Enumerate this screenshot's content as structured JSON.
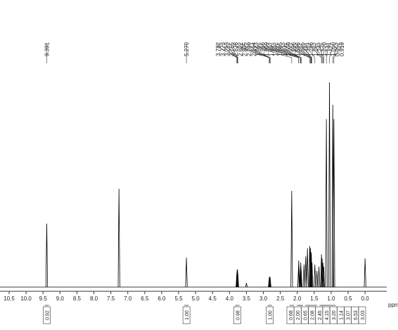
{
  "chart_data": {
    "type": "nmr",
    "xlabel": "ppm",
    "xlim": [
      10.77,
      -0.64
    ],
    "xticks": [
      10.5,
      {
        "value": 10,
        "label": "10.0"
      },
      9.5,
      {
        "value": 9,
        "label": "9.0"
      },
      8.5,
      {
        "value": 8,
        "label": "8.0"
      },
      7.5,
      {
        "value": 7,
        "label": "7.0"
      },
      6.5,
      {
        "value": 6,
        "label": "6.0"
      },
      5.5,
      {
        "value": 5,
        "label": "5.0"
      },
      4.5,
      {
        "value": 4,
        "label": "4.0"
      },
      3.5,
      {
        "value": 3,
        "label": "3.0"
      },
      2.5,
      {
        "value": 2,
        "label": "2.0"
      },
      1.5,
      {
        "value": 1,
        "label": "1.0"
      },
      0.5,
      {
        "value": 0,
        "label": "0.0"
      }
    ],
    "signals": {
      "x": [
        9.391,
        7.26,
        5.27,
        3.782,
        3.773,
        3.763,
        3.755,
        3.5,
        2.828,
        2.822,
        2.805,
        2.799,
        2.164,
        1.962,
        1.956,
        1.909,
        1.897,
        1.892,
        1.885,
        1.8,
        1.75,
        1.7,
        1.632,
        1.609,
        1.596,
        1.586,
        1.565,
        1.481,
        1.42,
        1.36,
        1.286,
        1.267,
        1.242,
        1.22,
        1.141,
        1.05,
        0.952,
        0.919,
        0
      ],
      "values": [
        31,
        48,
        14.4,
        7,
        8.6,
        8.6,
        7,
        2,
        4,
        5,
        5,
        4,
        47,
        10,
        13,
        9,
        12,
        10,
        8,
        11,
        15,
        19,
        20,
        19,
        16,
        17,
        12,
        11,
        8,
        10,
        16,
        14,
        12,
        10,
        82,
        100,
        89,
        82,
        14
      ]
    },
    "peak_labels": [
      9.391,
      {
        "value": 5.27,
        "label": "5.270"
      },
      3.782,
      3.773,
      3.763,
      3.755,
      2.828,
      2.822,
      2.805,
      2.799,
      2.164,
      1.962,
      1.956,
      1.909,
      1.897,
      1.892,
      1.885,
      1.632,
      1.609,
      1.596,
      1.586,
      1.565,
      1.481,
      1.286,
      1.267,
      1.242,
      {
        "value": 1.22,
        "label": "1.220"
      },
      1.141,
      {
        "value": 1.05,
        "label": "1.050"
      },
      0.952,
      0.919
    ],
    "integrals": {
      "x": [
        9.391,
        5.27,
        3.77,
        2.81,
        2.16,
        1.95,
        1.89,
        1.7,
        1.6,
        1.48,
        1.28,
        1.22,
        1.14,
        1.05,
        0.93
      ],
      "values": [
        0.92,
        1,
        0.98,
        1,
        0.68,
        2,
        0.65,
        2.08,
        2.45,
        4.15,
        3.2,
        1.14,
        3.07,
        6.53,
        3.03
      ],
      "value_labels": [
        "0.92",
        "1.00",
        "0.98",
        "1.00",
        "0.68",
        "2.00",
        "0.65",
        "2.08",
        "2.45",
        "4.15",
        "3.20",
        "1.14",
        "3.07",
        "6.53",
        "3.03"
      ]
    }
  }
}
